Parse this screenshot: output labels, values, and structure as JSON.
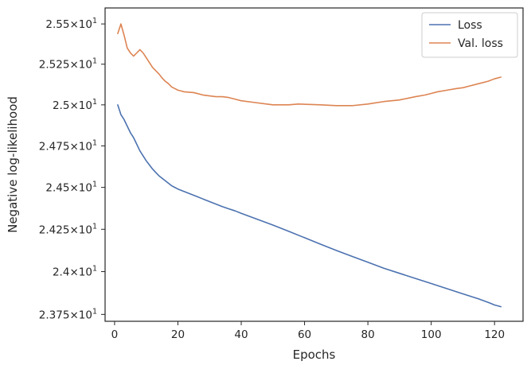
{
  "chart_data": {
    "type": "line",
    "xlabel": "Epochs",
    "ylabel": "Negative log-likelihood",
    "xlim": [
      -3,
      129
    ],
    "ylim": [
      23.71,
      25.6
    ],
    "y_scale": "log",
    "grid": false,
    "legend_position": "top-right",
    "x_ticks": [
      {
        "value": 0,
        "label": "0"
      },
      {
        "value": 20,
        "label": "20"
      },
      {
        "value": 40,
        "label": "40"
      },
      {
        "value": 60,
        "label": "60"
      },
      {
        "value": 80,
        "label": "80"
      },
      {
        "value": 100,
        "label": "100"
      },
      {
        "value": 120,
        "label": "120"
      }
    ],
    "y_ticks": [
      {
        "value": 23.75,
        "mantissa": "2.375",
        "times": "×",
        "base": "10",
        "exponent": "1"
      },
      {
        "value": 24.0,
        "mantissa": "2.4",
        "times": "×",
        "base": "10",
        "exponent": "1"
      },
      {
        "value": 24.25,
        "mantissa": "2.425",
        "times": "×",
        "base": "10",
        "exponent": "1"
      },
      {
        "value": 24.5,
        "mantissa": "2.45",
        "times": "×",
        "base": "10",
        "exponent": "1"
      },
      {
        "value": 24.75,
        "mantissa": "2.475",
        "times": "×",
        "base": "10",
        "exponent": "1"
      },
      {
        "value": 25.0,
        "mantissa": "2.5",
        "times": "×",
        "base": "10",
        "exponent": "1"
      },
      {
        "value": 25.25,
        "mantissa": "2.525",
        "times": "×",
        "base": "10",
        "exponent": "1"
      },
      {
        "value": 25.5,
        "mantissa": "2.55",
        "times": "×",
        "base": "10",
        "exponent": "1"
      }
    ],
    "series": [
      {
        "name": "Loss",
        "color": "#4c72b0",
        "x": [
          1,
          2,
          3,
          4,
          5,
          6,
          7,
          8,
          9,
          10,
          11,
          12,
          13,
          14,
          15,
          16,
          17,
          18,
          19,
          20,
          22,
          24,
          26,
          28,
          30,
          32,
          34,
          36,
          38,
          40,
          45,
          50,
          55,
          60,
          65,
          70,
          75,
          80,
          85,
          90,
          95,
          100,
          105,
          110,
          115,
          118,
          120,
          122
        ],
        "y": [
          25.0,
          24.94,
          24.91,
          24.87,
          24.83,
          24.8,
          24.76,
          24.72,
          24.69,
          24.66,
          24.635,
          24.61,
          24.59,
          24.57,
          24.555,
          24.54,
          24.525,
          24.51,
          24.5,
          24.49,
          24.475,
          24.46,
          24.445,
          24.43,
          24.415,
          24.4,
          24.385,
          24.372,
          24.36,
          24.345,
          24.31,
          24.275,
          24.238,
          24.2,
          24.162,
          24.125,
          24.09,
          24.055,
          24.02,
          23.99,
          23.96,
          23.93,
          23.9,
          23.87,
          23.84,
          23.82,
          23.805,
          23.795
        ]
      },
      {
        "name": "Val. loss",
        "color": "#dd8452",
        "x": [
          1,
          2,
          3,
          4,
          5,
          6,
          7,
          8,
          9,
          10,
          11,
          12,
          13,
          14,
          15,
          16,
          17,
          18,
          19,
          20,
          21,
          22,
          25,
          28,
          30,
          32,
          34,
          36,
          38,
          40,
          44,
          48,
          50,
          55,
          58,
          65,
          70,
          75,
          80,
          85,
          90,
          95,
          98,
          100,
          102,
          105,
          108,
          110,
          112,
          115,
          118,
          120,
          122
        ],
        "y": [
          25.44,
          25.5,
          25.43,
          25.35,
          25.32,
          25.3,
          25.32,
          25.34,
          25.32,
          25.29,
          25.26,
          25.23,
          25.21,
          25.19,
          25.165,
          25.145,
          25.13,
          25.11,
          25.1,
          25.09,
          25.085,
          25.08,
          25.075,
          25.06,
          25.055,
          25.05,
          25.05,
          25.045,
          25.035,
          25.025,
          25.015,
          25.005,
          25.0,
          25.0,
          25.005,
          25.0,
          24.995,
          24.995,
          25.005,
          25.02,
          25.03,
          25.05,
          25.06,
          25.07,
          25.08,
          25.09,
          25.1,
          25.105,
          25.115,
          25.13,
          25.145,
          25.16,
          25.17
        ]
      }
    ]
  }
}
